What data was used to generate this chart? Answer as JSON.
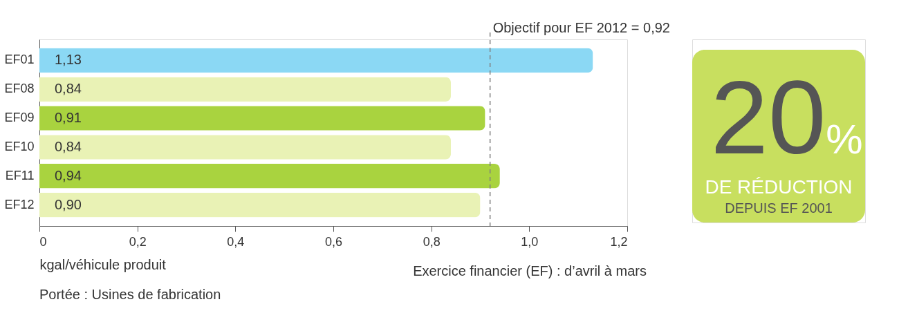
{
  "chart_data": {
    "type": "bar",
    "orientation": "horizontal",
    "categories": [
      "EF01",
      "EF08",
      "EF09",
      "EF10",
      "EF11",
      "EF12"
    ],
    "values": [
      1.13,
      0.84,
      0.91,
      0.84,
      0.94,
      0.9
    ],
    "colors": [
      "#8bd8f4",
      "#e9f2b5",
      "#a9d33f",
      "#e9f2b5",
      "#a9d33f",
      "#e9f2b5"
    ],
    "value_labels": [
      "1,13",
      "0,84",
      "0,91",
      "0,84",
      "0,94",
      "0,90"
    ],
    "xlim": [
      0,
      1.2
    ],
    "xticks": [
      0,
      {
        "value": 0.2,
        "label": "0,2"
      },
      {
        "value": 0.4,
        "label": "0,4"
      },
      {
        "value": 0.6,
        "label": "0,6"
      },
      {
        "value": 0.8,
        "label": "0,8"
      },
      {
        "value": 1.0,
        "label": "1,0"
      },
      {
        "value": 1.2,
        "label": "1,2"
      }
    ],
    "xlabel": "kgal/véhicule produit",
    "ref_lines": [
      {
        "axis": "x",
        "value": 0.92,
        "label": "Objectif pour EF 2012 = 0,92",
        "color": "#808080",
        "line_style": "dashed"
      }
    ],
    "annotations": [
      "Exercice financier (EF) : d’avril à mars",
      "Portée : Usines de fabrication",
      "20",
      "%",
      "DE RÉDUCTION",
      "DEPUIS EF 2001"
    ],
    "grid": false,
    "legend": false
  }
}
